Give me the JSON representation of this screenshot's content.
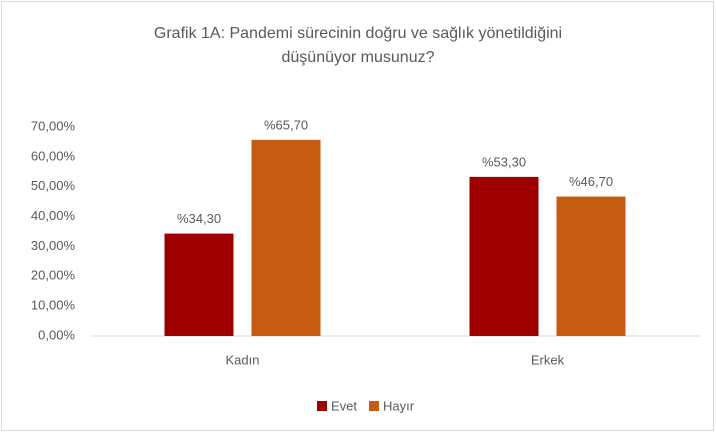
{
  "chart_data": {
    "type": "bar",
    "title": "Grafik 1A: Pandemi sürecinin doğru ve sağlık yönetildiğini düşünüyor musunuz?",
    "categories": [
      "Kadın",
      "Erkek"
    ],
    "series": [
      {
        "name": "Evet",
        "color": "#9e0000",
        "values": [
          34.3,
          53.3
        ],
        "value_labels": [
          "%34,30",
          "%53,30"
        ]
      },
      {
        "name": "Hayır",
        "color": "#c55a11",
        "values": [
          65.7,
          46.7
        ],
        "value_labels": [
          "%65,70",
          "%46,70"
        ]
      }
    ],
    "ylim": [
      0,
      70
    ],
    "yticks": [
      {
        "value": 0,
        "label": "0,00%"
      },
      {
        "value": 10,
        "label": "10,00%"
      },
      {
        "value": 20,
        "label": "20,00%"
      },
      {
        "value": 30,
        "label": "30,00%"
      },
      {
        "value": 40,
        "label": "40,00%"
      },
      {
        "value": 50,
        "label": "50,00%"
      },
      {
        "value": 60,
        "label": "60,00%"
      },
      {
        "value": 70,
        "label": "70,00%"
      }
    ],
    "grid": false,
    "legend": "bottom"
  }
}
